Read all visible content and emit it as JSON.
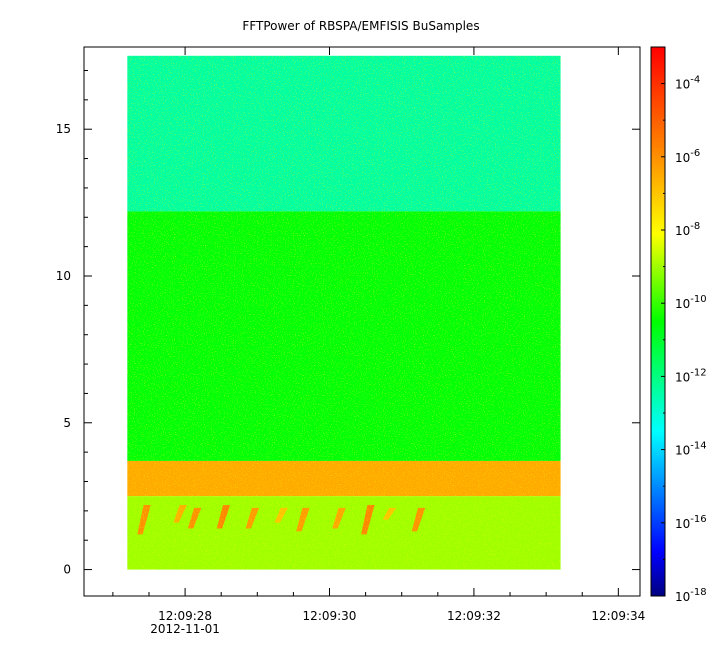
{
  "chart_data": {
    "type": "heatmap",
    "title": "FFTPower of RBSPA/EMFISIS  BuSamples",
    "xlabel": "",
    "ylabel": "",
    "x_range": [
      "12:09:26.6",
      "12:09:34.3"
    ],
    "data_x_range": [
      "12:09:27.2",
      "12:09:33.2"
    ],
    "x_ticks": [
      {
        "value": "12:09:28",
        "label": "12:09:28",
        "sublabel": "2012-11-01"
      },
      {
        "value": "12:09:30",
        "label": "12:09:30",
        "sublabel": ""
      },
      {
        "value": "12:09:32",
        "label": "12:09:32",
        "sublabel": ""
      },
      {
        "value": "12:09:34",
        "label": "12:09:34",
        "sublabel": ""
      }
    ],
    "ylim": [
      -0.9,
      17.8
    ],
    "data_y_range": [
      0,
      17.5
    ],
    "y_ticks": [
      0,
      5,
      10,
      15
    ],
    "y_tick_labels": [
      "0",
      "5",
      "10",
      "15"
    ],
    "colorbar": {
      "scale": "log",
      "range": [
        1e-18,
        0.001
      ],
      "ticks": [
        {
          "base": "10",
          "exp": "-4",
          "value": 0.0001
        },
        {
          "base": "10",
          "exp": "-6",
          "value": 1e-06
        },
        {
          "base": "10",
          "exp": "-8",
          "value": 1e-08
        },
        {
          "base": "10",
          "exp": "-10",
          "value": 1e-10
        },
        {
          "base": "10",
          "exp": "-12",
          "value": 1e-12
        },
        {
          "base": "10",
          "exp": "-14",
          "value": 1e-14
        },
        {
          "base": "10",
          "exp": "-16",
          "value": 1e-16
        },
        {
          "base": "10",
          "exp": "-18",
          "value": 1e-18
        }
      ],
      "colormap": [
        "#00007f",
        "#0000ff",
        "#00ffff",
        "#00ff00",
        "#ffff00",
        "#ff8000",
        "#ff0000"
      ]
    },
    "bands": [
      {
        "y_range": [
          12.2,
          17.5
        ],
        "log_power": -12.4
      },
      {
        "y_range": [
          3.7,
          12.2
        ],
        "log_power": -10.6
      },
      {
        "y_range": [
          2.5,
          3.7
        ],
        "log_power": -6.5
      },
      {
        "y_range": [
          0,
          2.5
        ],
        "log_power": -9.0
      }
    ],
    "chorus_bursts": [
      {
        "t": "12:09:27.4",
        "y_range": [
          1.2,
          2.2
        ],
        "log_power": -6.0
      },
      {
        "t": "12:09:27.9",
        "y_range": [
          1.6,
          2.2
        ],
        "log_power": -6.6
      },
      {
        "t": "12:09:28.1",
        "y_range": [
          1.4,
          2.1
        ],
        "log_power": -6.0
      },
      {
        "t": "12:09:28.5",
        "y_range": [
          1.4,
          2.2
        ],
        "log_power": -5.8
      },
      {
        "t": "12:09:28.9",
        "y_range": [
          1.4,
          2.1
        ],
        "log_power": -6.2
      },
      {
        "t": "12:09:29.3",
        "y_range": [
          1.6,
          2.1
        ],
        "log_power": -7.0
      },
      {
        "t": "12:09:29.6",
        "y_range": [
          1.3,
          2.1
        ],
        "log_power": -6.2
      },
      {
        "t": "12:09:30.1",
        "y_range": [
          1.4,
          2.1
        ],
        "log_power": -6.4
      },
      {
        "t": "12:09:30.5",
        "y_range": [
          1.2,
          2.2
        ],
        "log_power": -5.8
      },
      {
        "t": "12:09:30.8",
        "y_range": [
          1.7,
          2.1
        ],
        "log_power": -7.0
      },
      {
        "t": "12:09:31.2",
        "y_range": [
          1.3,
          2.1
        ],
        "log_power": -6.0
      }
    ]
  }
}
